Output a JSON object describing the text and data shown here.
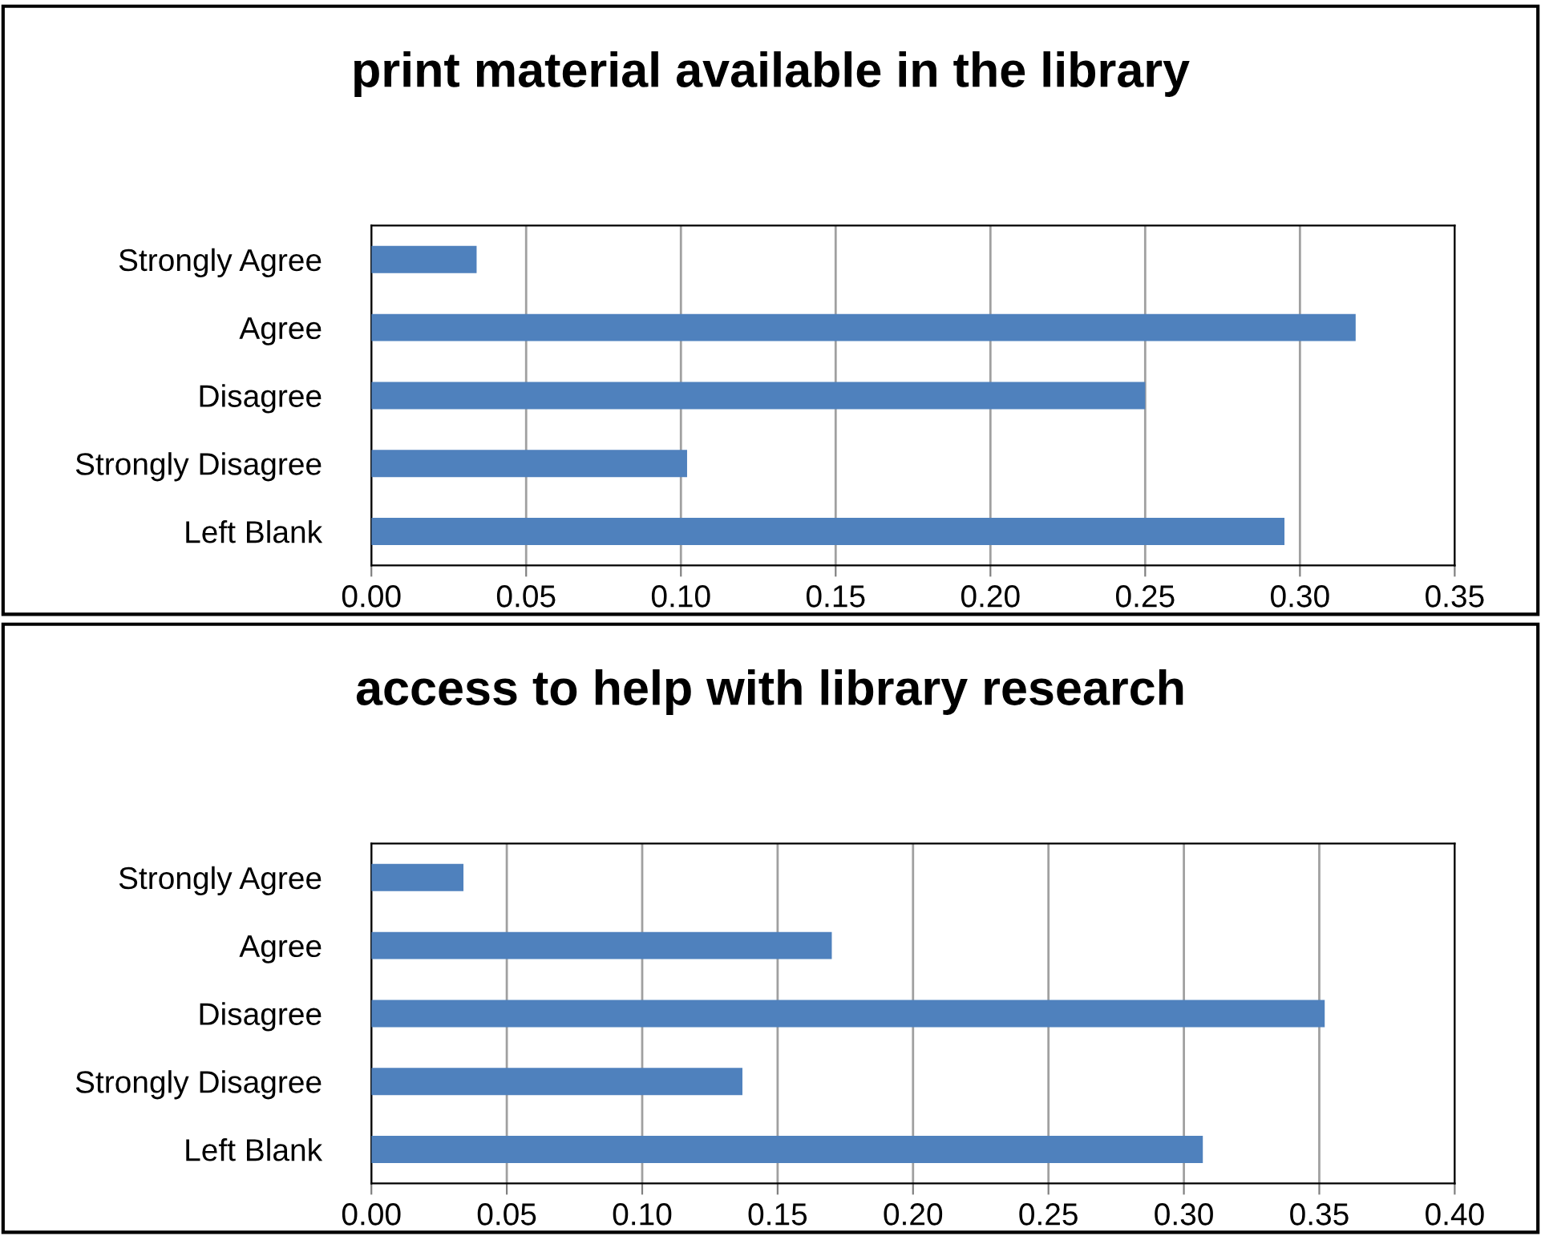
{
  "chart_data": [
    {
      "type": "bar",
      "orientation": "horizontal",
      "title": "print material available in the library",
      "categories": [
        "Strongly Agree",
        "Agree",
        "Disagree",
        "Strongly Disagree",
        "Left Blank"
      ],
      "values": [
        0.034,
        0.318,
        0.25,
        0.102,
        0.295
      ],
      "color": "#4f81bd",
      "xlim": [
        0,
        0.35
      ],
      "xticks": [
        {
          "value": 0,
          "label": "0.00"
        },
        {
          "value": 0.05,
          "label": "0.05"
        },
        {
          "value": 0.1,
          "label": "0.10"
        },
        {
          "value": 0.15,
          "label": "0.15"
        },
        {
          "value": 0.2,
          "label": "0.20"
        },
        {
          "value": 0.25,
          "label": "0.25"
        },
        {
          "value": 0.3,
          "label": "0.30"
        },
        {
          "value": 0.35,
          "label": "0.35"
        }
      ],
      "grid": "x",
      "legend": false
    },
    {
      "type": "bar",
      "orientation": "horizontal",
      "title": "access to help with library research",
      "categories": [
        "Strongly Agree",
        "Agree",
        "Disagree",
        "Strongly Disagree",
        "Left Blank"
      ],
      "values": [
        0.034,
        0.17,
        0.352,
        0.137,
        0.307
      ],
      "color": "#4f81bd",
      "xlim": [
        0,
        0.4
      ],
      "xticks": [
        {
          "value": 0,
          "label": "0.00"
        },
        {
          "value": 0.05,
          "label": "0.05"
        },
        {
          "value": 0.1,
          "label": "0.10"
        },
        {
          "value": 0.15,
          "label": "0.15"
        },
        {
          "value": 0.2,
          "label": "0.20"
        },
        {
          "value": 0.25,
          "label": "0.25"
        },
        {
          "value": 0.3,
          "label": "0.30"
        },
        {
          "value": 0.35,
          "label": "0.35"
        },
        {
          "value": 0.4,
          "label": "0.40"
        }
      ],
      "grid": "x",
      "legend": false
    }
  ]
}
